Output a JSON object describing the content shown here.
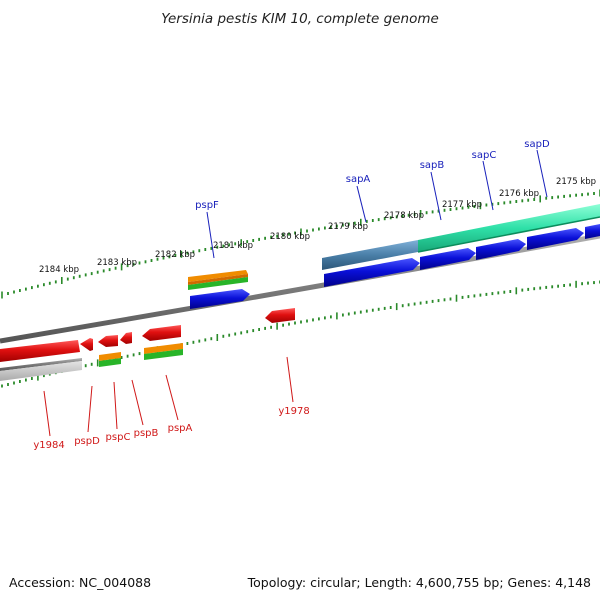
{
  "title": "Yersinia pestis KIM 10, complete genome",
  "footer": {
    "accession": "Accession: NC_004088",
    "info": "Topology: circular; Length: 4,600,755 bp; Genes: 4,148"
  },
  "scale_labels": [
    "2184 kbp",
    "2183 kbp",
    "2182 kbp",
    "2181 kbp",
    "2180 kbp",
    "2179 kbp",
    "2178 kbp",
    "2177 kbp",
    "2176 kbp",
    "2175 kbp"
  ],
  "genes_forward": [
    "pspF",
    "sapA",
    "sapB",
    "sapC",
    "sapD"
  ],
  "genes_reverse": [
    "y1984",
    "pspD",
    "pspC",
    "pspB",
    "pspA",
    "y1978"
  ],
  "colors": {
    "backbone": "#808080",
    "forward_cds": "#0a10d8",
    "reverse_cds": "#e01010",
    "orange_feature": "#f08c00",
    "green_feature": "#28b428",
    "teal_feature": "#2fe0a8",
    "steel_feature": "#4a7fa8",
    "tick": "#2a8a2a",
    "forward_label": "#1a22bb",
    "reverse_label": "#d01818"
  }
}
